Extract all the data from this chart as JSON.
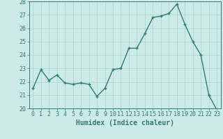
{
  "x": [
    0,
    1,
    2,
    3,
    4,
    5,
    6,
    7,
    8,
    9,
    10,
    11,
    12,
    13,
    14,
    15,
    16,
    17,
    18,
    19,
    20,
    21,
    22,
    23
  ],
  "y": [
    21.5,
    22.9,
    22.1,
    22.5,
    21.9,
    21.8,
    21.9,
    21.8,
    20.9,
    21.5,
    22.9,
    23.0,
    24.5,
    24.5,
    25.6,
    26.8,
    26.9,
    27.1,
    27.8,
    26.3,
    25.0,
    24.0,
    21.0,
    19.9
  ],
  "line_color": "#2e7d6e",
  "marker": "+",
  "marker_size": 3,
  "bg_color": "#cceae7",
  "grid_color": "#aad4d0",
  "xlabel": "Humidex (Indice chaleur)",
  "ylim": [
    20,
    28
  ],
  "yticks": [
    20,
    21,
    22,
    23,
    24,
    25,
    26,
    27,
    28
  ],
  "xticks": [
    0,
    1,
    2,
    3,
    4,
    5,
    6,
    7,
    8,
    9,
    10,
    11,
    12,
    13,
    14,
    15,
    16,
    17,
    18,
    19,
    20,
    21,
    22,
    23
  ],
  "xlabel_fontsize": 7,
  "tick_fontsize": 6,
  "line_width": 1.0
}
